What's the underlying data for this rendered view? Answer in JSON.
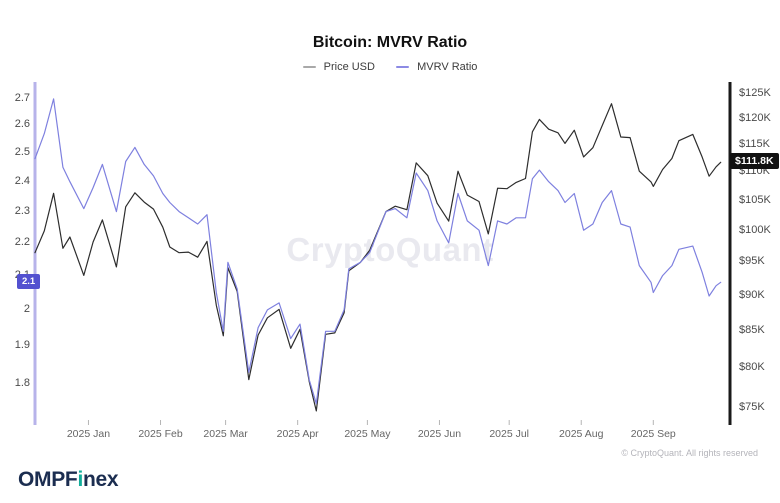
{
  "header": {
    "title": "Bitcoin: MVRV Ratio"
  },
  "legend": [
    {
      "label": "Price USD",
      "color": "#a9a9a9"
    },
    {
      "label": "MVRV Ratio",
      "color": "#8c8ae4"
    }
  ],
  "watermark": "CryptoQuant",
  "footer": {
    "brand_pre": "OMPF",
    "brand_accent": "i",
    "brand_post": "nex",
    "copyright": "© CryptoQuant. All rights reserved"
  },
  "chart_data": {
    "type": "line",
    "title": "Bitcoin: MVRV Ratio",
    "x_scale": "time",
    "grid": false,
    "legend_position": "top-center",
    "x_domain": [
      "2024-12-09",
      "2025-10-04"
    ],
    "x_ticks": [
      {
        "label": "2025 Jan",
        "date": "2025-01-01"
      },
      {
        "label": "2025 Feb",
        "date": "2025-02-01"
      },
      {
        "label": "2025 Mar",
        "date": "2025-03-01"
      },
      {
        "label": "2025 Apr",
        "date": "2025-04-01"
      },
      {
        "label": "2025 May",
        "date": "2025-05-01"
      },
      {
        "label": "2025 Jun",
        "date": "2025-06-01"
      },
      {
        "label": "2025 Jul",
        "date": "2025-07-01"
      },
      {
        "label": "2025 Aug",
        "date": "2025-08-01"
      },
      {
        "label": "2025 Sep",
        "date": "2025-09-01"
      }
    ],
    "left_axis": {
      "name": "MVRV Ratio",
      "scale": "log",
      "range_bottom": 1.71,
      "range_top": 2.754,
      "axis_line_color": "#b7b3ea",
      "ticks": [
        {
          "value": 2.7,
          "label": "2.7"
        },
        {
          "value": 2.6,
          "label": "2.6"
        },
        {
          "value": 2.5,
          "label": "2.5"
        },
        {
          "value": 2.4,
          "label": "2.4"
        },
        {
          "value": 2.3,
          "label": "2.3"
        },
        {
          "value": 2.2,
          "label": "2.2"
        },
        {
          "value": 2.1,
          "label": "2.1"
        },
        {
          "value": 2.0,
          "label": "2"
        },
        {
          "value": 1.9,
          "label": "1.9"
        },
        {
          "value": 1.8,
          "label": "1.8"
        }
      ],
      "badge": {
        "text": "2.1",
        "bg": "#5351d0"
      }
    },
    "right_axis": {
      "name": "Price USD",
      "scale": "log",
      "range_bottom": 73.5,
      "range_top": 126.8,
      "axis_line_color": "#1a1a1a",
      "ticks": [
        {
          "value": 125,
          "label": "$125K"
        },
        {
          "value": 120,
          "label": "$120K"
        },
        {
          "value": 115,
          "label": "$115K"
        },
        {
          "value": 110,
          "label": "$110K"
        },
        {
          "value": 105,
          "label": "$105K"
        },
        {
          "value": 100,
          "label": "$100K"
        },
        {
          "value": 95,
          "label": "$95K"
        },
        {
          "value": 90,
          "label": "$90K"
        },
        {
          "value": 85,
          "label": "$85K"
        },
        {
          "value": 80,
          "label": "$80K"
        },
        {
          "value": 75,
          "label": "$75K"
        }
      ],
      "badge": {
        "text": "$111.8K",
        "bg": "#111111"
      }
    },
    "dates": [
      "2024-12-09",
      "2024-12-13",
      "2024-12-17",
      "2024-12-21",
      "2024-12-24",
      "2024-12-30",
      "2025-01-03",
      "2025-01-07",
      "2025-01-13",
      "2025-01-17",
      "2025-01-21",
      "2025-01-25",
      "2025-01-29",
      "2025-02-02",
      "2025-02-05",
      "2025-02-09",
      "2025-02-13",
      "2025-02-17",
      "2025-02-21",
      "2025-02-25",
      "2025-02-28",
      "2025-03-02",
      "2025-03-06",
      "2025-03-11",
      "2025-03-15",
      "2025-03-19",
      "2025-03-24",
      "2025-03-29",
      "2025-04-02",
      "2025-04-06",
      "2025-04-09",
      "2025-04-13",
      "2025-04-17",
      "2025-04-21",
      "2025-04-23",
      "2025-04-28",
      "2025-05-02",
      "2025-05-09",
      "2025-05-13",
      "2025-05-18",
      "2025-05-22",
      "2025-05-27",
      "2025-05-31",
      "2025-06-05",
      "2025-06-09",
      "2025-06-13",
      "2025-06-18",
      "2025-06-22",
      "2025-06-26",
      "2025-06-30",
      "2025-07-04",
      "2025-07-08",
      "2025-07-11",
      "2025-07-14",
      "2025-07-18",
      "2025-07-22",
      "2025-07-25",
      "2025-07-29",
      "2025-08-02",
      "2025-08-06",
      "2025-08-10",
      "2025-08-14",
      "2025-08-18",
      "2025-08-22",
      "2025-08-26",
      "2025-08-31",
      "2025-09-01",
      "2025-09-05",
      "2025-09-09",
      "2025-09-12",
      "2025-09-18",
      "2025-09-22",
      "2025-09-25",
      "2025-09-28",
      "2025-09-30"
    ],
    "series": [
      {
        "name": "Price USD",
        "axis": "right",
        "color": "#2d2d2d",
        "unit": "K USD",
        "values": [
          96.5,
          100.0,
          106.3,
          97.2,
          99.0,
          93.0,
          98.2,
          101.8,
          94.3,
          104.0,
          106.4,
          104.8,
          103.6,
          100.6,
          97.4,
          96.5,
          96.6,
          95.8,
          98.3,
          88.6,
          84.3,
          94.2,
          90.6,
          78.5,
          84.4,
          86.8,
          88.0,
          82.6,
          85.2,
          78.2,
          74.6,
          84.5,
          84.7,
          87.5,
          93.7,
          95.0,
          96.9,
          103.2,
          104.1,
          103.5,
          111.7,
          109.4,
          104.6,
          101.6,
          110.2,
          106.0,
          104.9,
          99.5,
          107.2,
          107.1,
          108.2,
          108.9,
          117.5,
          119.9,
          118.0,
          117.3,
          115.3,
          117.8,
          112.8,
          114.5,
          118.7,
          123.0,
          116.5,
          116.4,
          110.2,
          108.3,
          107.5,
          110.5,
          112.5,
          115.8,
          117.0,
          112.8,
          109.3,
          111.0,
          111.8
        ],
        "last_value_label": "$111.8K"
      },
      {
        "name": "MVRV Ratio",
        "axis": "left",
        "color": "#7e80df",
        "unit": "ratio",
        "values": [
          2.48,
          2.57,
          2.7,
          2.45,
          2.4,
          2.31,
          2.38,
          2.46,
          2.3,
          2.47,
          2.52,
          2.46,
          2.42,
          2.36,
          2.33,
          2.3,
          2.28,
          2.26,
          2.29,
          2.05,
          1.94,
          2.14,
          2.06,
          1.83,
          1.95,
          2.0,
          2.02,
          1.92,
          1.96,
          1.81,
          1.75,
          1.94,
          1.94,
          2.0,
          2.12,
          2.14,
          2.17,
          2.3,
          2.31,
          2.28,
          2.43,
          2.37,
          2.27,
          2.2,
          2.36,
          2.27,
          2.24,
          2.13,
          2.27,
          2.26,
          2.28,
          2.28,
          2.41,
          2.44,
          2.4,
          2.37,
          2.33,
          2.36,
          2.24,
          2.26,
          2.33,
          2.37,
          2.26,
          2.25,
          2.13,
          2.08,
          2.05,
          2.1,
          2.13,
          2.18,
          2.19,
          2.11,
          2.04,
          2.07,
          2.08
        ],
        "last_value_label": "2.1"
      }
    ]
  }
}
